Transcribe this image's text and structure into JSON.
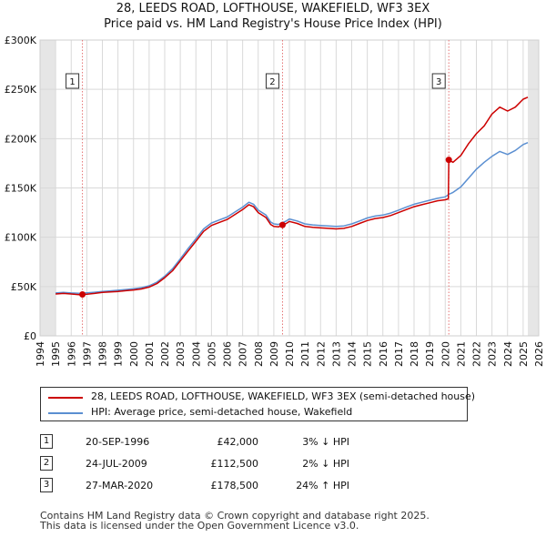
{
  "header": {
    "title": "28, LEEDS ROAD, LOFTHOUSE, WAKEFIELD, WF3 3EX",
    "subtitle": "Price paid vs. HM Land Registry's House Price Index (HPI)"
  },
  "chart_data": {
    "type": "line",
    "title": "28, LEEDS ROAD, LOFTHOUSE, WAKEFIELD, WF3 3EX",
    "subtitle": "Price paid vs. HM Land Registry's House Price Index (HPI)",
    "xlabel": "",
    "ylabel": "",
    "xlim": [
      1994,
      2026
    ],
    "ylim": [
      0,
      300000
    ],
    "x_ticks": [
      "1994",
      "1995",
      "1996",
      "1997",
      "1998",
      "1999",
      "2000",
      "2001",
      "2002",
      "2003",
      "2004",
      "2005",
      "2006",
      "2007",
      "2008",
      "2009",
      "2010",
      "2011",
      "2012",
      "2013",
      "2014",
      "2015",
      "2016",
      "2017",
      "2018",
      "2019",
      "2020",
      "2021",
      "2022",
      "2023",
      "2024",
      "2025",
      "2026"
    ],
    "y_ticks": [
      {
        "value": 0,
        "label": "£0"
      },
      {
        "value": 50000,
        "label": "£50K"
      },
      {
        "value": 100000,
        "label": "£100K"
      },
      {
        "value": 150000,
        "label": "£150K"
      },
      {
        "value": 200000,
        "label": "£200K"
      },
      {
        "value": 250000,
        "label": "£250K"
      },
      {
        "value": 300000,
        "label": "£300K"
      }
    ],
    "grid": true,
    "data_range": [
      1995.0,
      2025.3
    ],
    "series": [
      {
        "name": "28, LEEDS ROAD, LOFTHOUSE, WAKEFIELD, WF3 3EX (semi-detached house)",
        "color": "#cc0000",
        "points": [
          [
            1995.0,
            42500
          ],
          [
            1995.5,
            43000
          ],
          [
            1996.0,
            42500
          ],
          [
            1996.5,
            41800
          ],
          [
            1996.72,
            42000
          ],
          [
            1997.0,
            42300
          ],
          [
            1997.5,
            43000
          ],
          [
            1998.0,
            44000
          ],
          [
            1998.5,
            44500
          ],
          [
            1999.0,
            45000
          ],
          [
            1999.5,
            45800
          ],
          [
            2000.0,
            46500
          ],
          [
            2000.5,
            47500
          ],
          [
            2001.0,
            49500
          ],
          [
            2001.5,
            53000
          ],
          [
            2002.0,
            59000
          ],
          [
            2002.5,
            66000
          ],
          [
            2003.0,
            76000
          ],
          [
            2003.5,
            86000
          ],
          [
            2004.0,
            96000
          ],
          [
            2004.5,
            106000
          ],
          [
            2005.0,
            112000
          ],
          [
            2005.5,
            115000
          ],
          [
            2006.0,
            118000
          ],
          [
            2006.5,
            123000
          ],
          [
            2007.0,
            128000
          ],
          [
            2007.4,
            133000
          ],
          [
            2007.7,
            131000
          ],
          [
            2008.0,
            125000
          ],
          [
            2008.5,
            120000
          ],
          [
            2008.8,
            113000
          ],
          [
            2009.0,
            111000
          ],
          [
            2009.3,
            110500
          ],
          [
            2009.56,
            112500
          ],
          [
            2009.8,
            114000
          ],
          [
            2010.0,
            116000
          ],
          [
            2010.5,
            114000
          ],
          [
            2011.0,
            111000
          ],
          [
            2011.5,
            110000
          ],
          [
            2012.0,
            109500
          ],
          [
            2012.5,
            109000
          ],
          [
            2013.0,
            108500
          ],
          [
            2013.5,
            109000
          ],
          [
            2014.0,
            111000
          ],
          [
            2014.5,
            114000
          ],
          [
            2015.0,
            117000
          ],
          [
            2015.5,
            119000
          ],
          [
            2016.0,
            120000
          ],
          [
            2016.5,
            122000
          ],
          [
            2017.0,
            125000
          ],
          [
            2017.5,
            128000
          ],
          [
            2018.0,
            131000
          ],
          [
            2018.5,
            133000
          ],
          [
            2019.0,
            135000
          ],
          [
            2019.5,
            137000
          ],
          [
            2020.0,
            138000
          ],
          [
            2020.2,
            139000
          ],
          [
            2020.23,
            178500
          ],
          [
            2020.5,
            176000
          ],
          [
            2021.0,
            183000
          ],
          [
            2021.5,
            195000
          ],
          [
            2022.0,
            205000
          ],
          [
            2022.5,
            213000
          ],
          [
            2023.0,
            225000
          ],
          [
            2023.5,
            232000
          ],
          [
            2024.0,
            228000
          ],
          [
            2024.5,
            232000
          ],
          [
            2025.0,
            240000
          ],
          [
            2025.3,
            242000
          ]
        ]
      },
      {
        "name": "HPI: Average price, semi-detached house, Wakefield",
        "color": "#5b8fd1",
        "points": [
          [
            1995.0,
            43500
          ],
          [
            1995.5,
            44000
          ],
          [
            1996.0,
            43500
          ],
          [
            1996.5,
            43200
          ],
          [
            1996.72,
            43300
          ],
          [
            1997.0,
            43600
          ],
          [
            1997.5,
            44200
          ],
          [
            1998.0,
            45000
          ],
          [
            1998.5,
            45600
          ],
          [
            1999.0,
            46200
          ],
          [
            1999.5,
            47000
          ],
          [
            2000.0,
            47800
          ],
          [
            2000.5,
            48800
          ],
          [
            2001.0,
            50800
          ],
          [
            2001.5,
            54500
          ],
          [
            2002.0,
            60500
          ],
          [
            2002.5,
            68000
          ],
          [
            2003.0,
            78000
          ],
          [
            2003.5,
            88500
          ],
          [
            2004.0,
            98500
          ],
          [
            2004.5,
            108500
          ],
          [
            2005.0,
            114500
          ],
          [
            2005.5,
            117500
          ],
          [
            2006.0,
            120500
          ],
          [
            2006.5,
            125500
          ],
          [
            2007.0,
            130500
          ],
          [
            2007.4,
            135500
          ],
          [
            2007.7,
            133500
          ],
          [
            2008.0,
            127500
          ],
          [
            2008.5,
            122500
          ],
          [
            2008.8,
            115500
          ],
          [
            2009.0,
            113500
          ],
          [
            2009.3,
            113000
          ],
          [
            2009.56,
            114700
          ],
          [
            2009.8,
            116500
          ],
          [
            2010.0,
            118500
          ],
          [
            2010.5,
            116500
          ],
          [
            2011.0,
            113500
          ],
          [
            2011.5,
            112500
          ],
          [
            2012.0,
            112000
          ],
          [
            2012.5,
            111500
          ],
          [
            2013.0,
            111000
          ],
          [
            2013.5,
            111500
          ],
          [
            2014.0,
            113500
          ],
          [
            2014.5,
            116500
          ],
          [
            2015.0,
            119500
          ],
          [
            2015.5,
            121500
          ],
          [
            2016.0,
            122500
          ],
          [
            2016.5,
            124500
          ],
          [
            2017.0,
            127500
          ],
          [
            2017.5,
            130500
          ],
          [
            2018.0,
            133500
          ],
          [
            2018.5,
            135500
          ],
          [
            2019.0,
            137500
          ],
          [
            2019.5,
            139500
          ],
          [
            2020.0,
            141000
          ],
          [
            2020.23,
            143500
          ],
          [
            2020.5,
            145500
          ],
          [
            2021.0,
            151000
          ],
          [
            2021.5,
            160000
          ],
          [
            2022.0,
            169000
          ],
          [
            2022.5,
            176000
          ],
          [
            2023.0,
            182000
          ],
          [
            2023.5,
            187000
          ],
          [
            2024.0,
            184000
          ],
          [
            2024.5,
            188000
          ],
          [
            2025.0,
            194000
          ],
          [
            2025.3,
            196000
          ]
        ]
      }
    ],
    "sales": [
      {
        "label": "1",
        "x": 1996.72,
        "price": 42000
      },
      {
        "label": "2",
        "x": 2009.56,
        "price": 112500
      },
      {
        "label": "3",
        "x": 2020.23,
        "price": 178500
      }
    ]
  },
  "legend": {
    "items": [
      {
        "label": "28, LEEDS ROAD, LOFTHOUSE, WAKEFIELD, WF3 3EX (semi-detached house)",
        "color": "#cc0000"
      },
      {
        "label": "HPI: Average price, semi-detached house, Wakefield",
        "color": "#5b8fd1"
      }
    ]
  },
  "transactions": [
    {
      "num": "1",
      "date": "20-SEP-1996",
      "price": "£42,000",
      "hpi": "3% ↓ HPI"
    },
    {
      "num": "2",
      "date": "24-JUL-2009",
      "price": "£112,500",
      "hpi": "2% ↓ HPI"
    },
    {
      "num": "3",
      "date": "27-MAR-2020",
      "price": "£178,500",
      "hpi": "24% ↑ HPI"
    }
  ],
  "footer": {
    "line1": "Contains HM Land Registry data © Crown copyright and database right 2025.",
    "line2": "This data is licensed under the Open Government Licence v3.0."
  }
}
